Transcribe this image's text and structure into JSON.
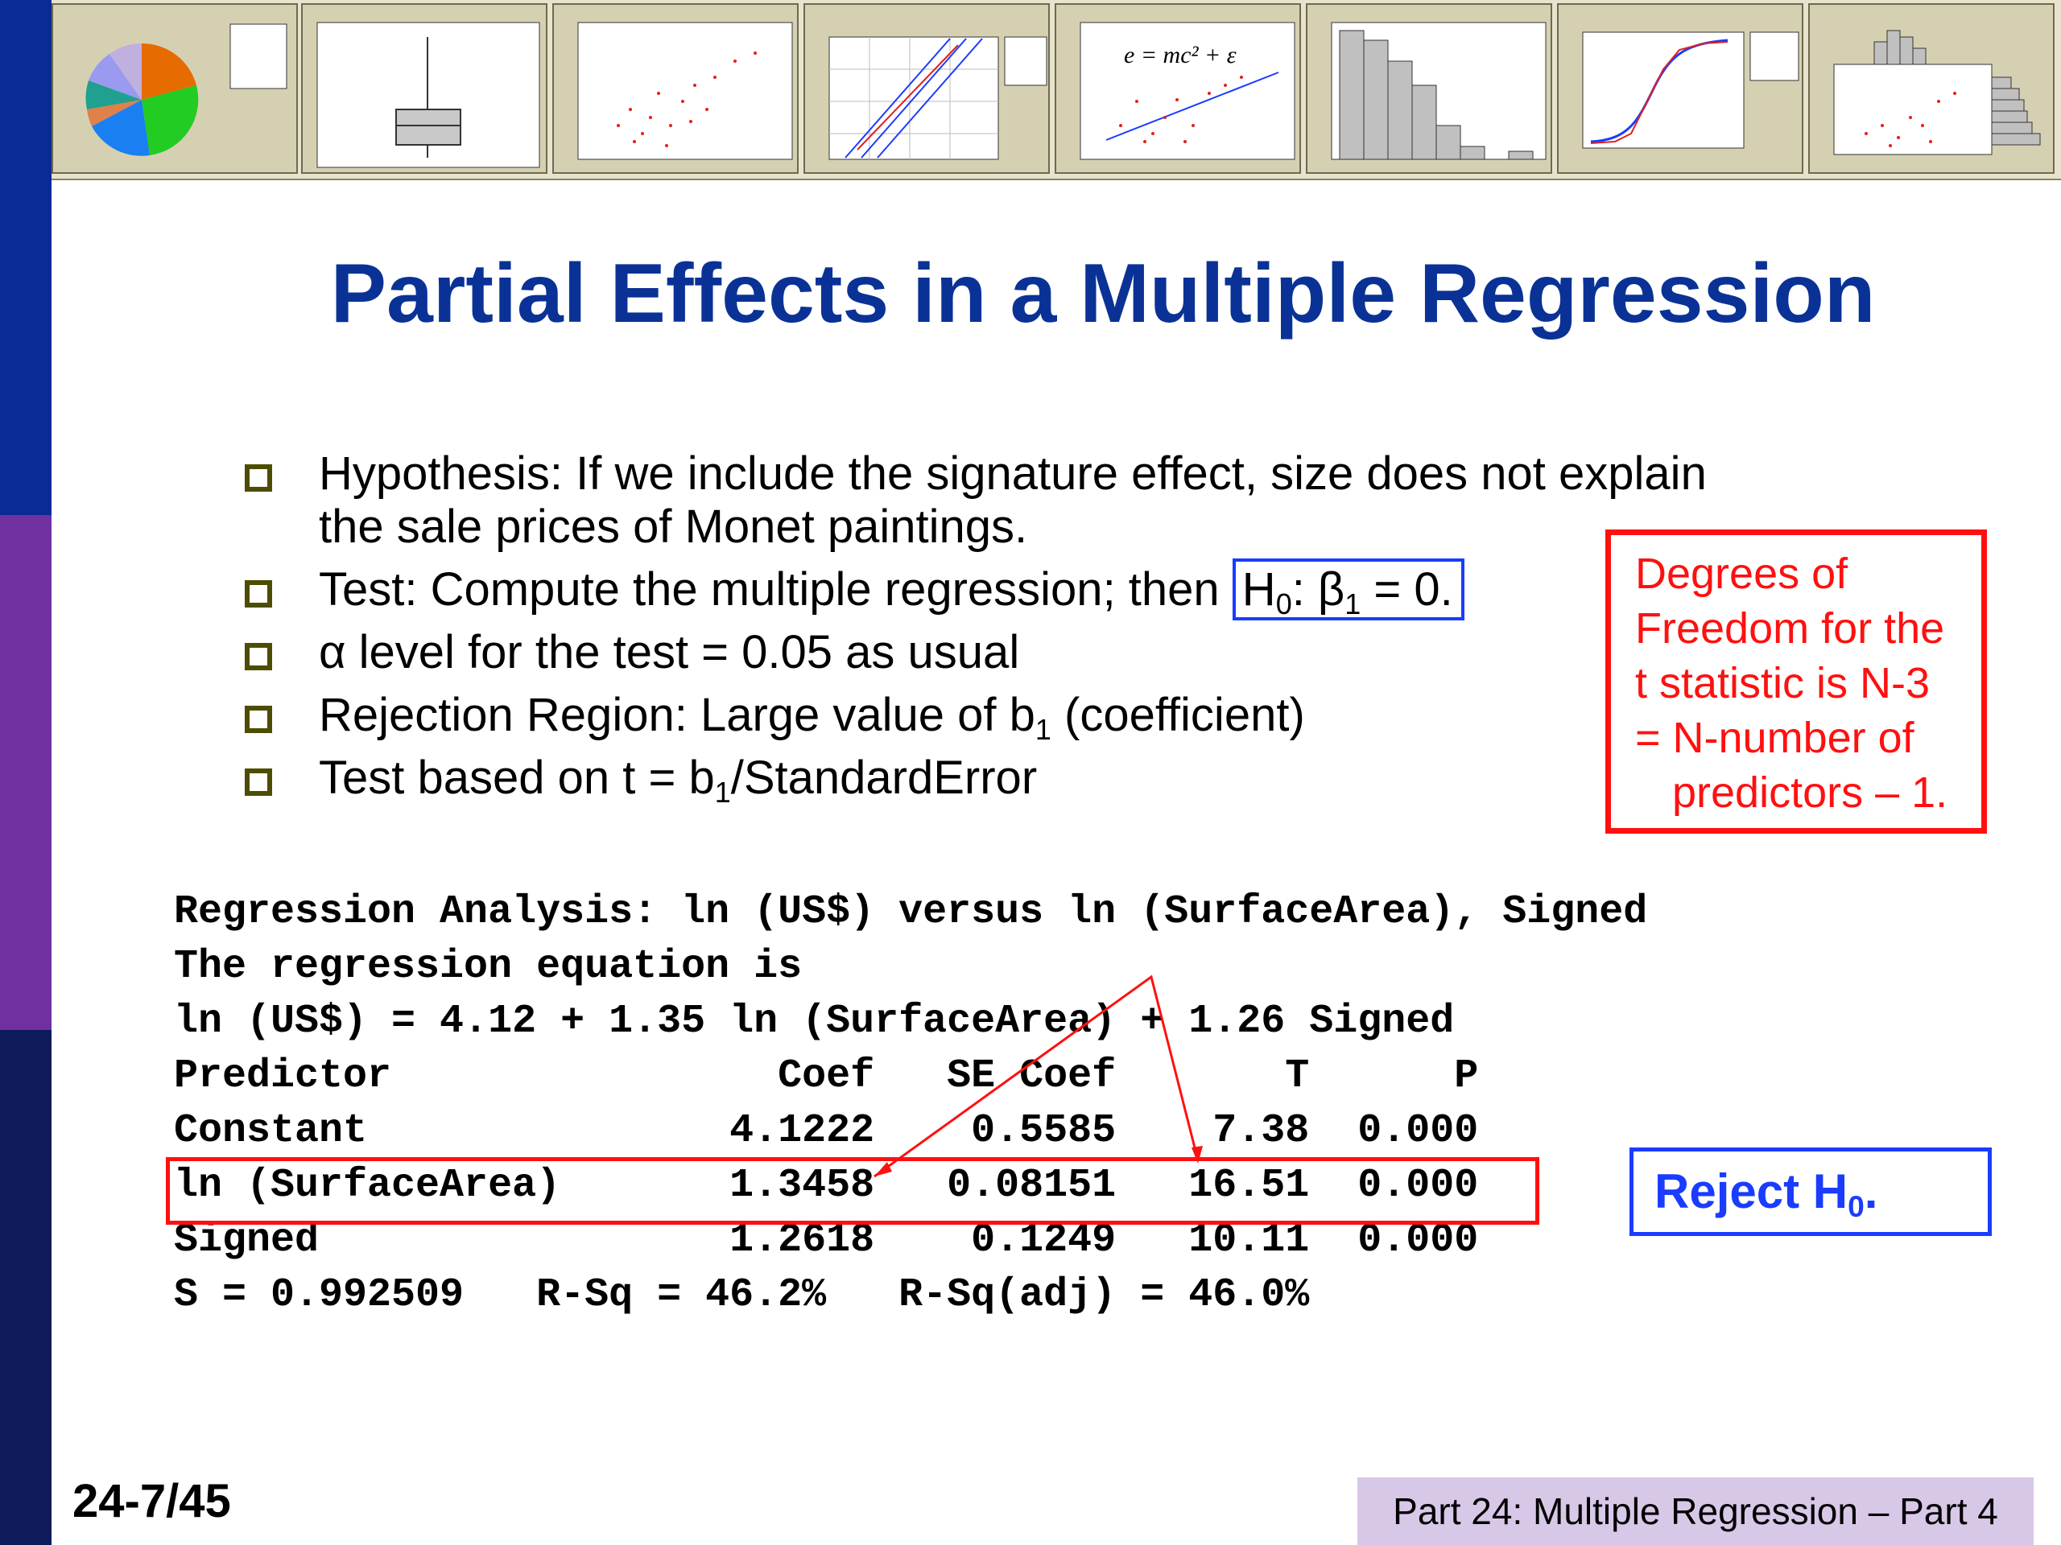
{
  "slide": {
    "title": "Partial Effects in a Multiple Regression",
    "bullets": [
      {
        "parts": [
          "Hypothesis: If we include the signature effect, size does not explain the sale prices of Monet paintings."
        ]
      },
      {
        "prefix": "Test: Compute the multiple regression; then ",
        "h0_main": "H",
        "h0_sub1": "0",
        "h0_mid": ": β",
        "h0_sub2": "1",
        "h0_end": " = 0."
      },
      {
        "parts": [
          "α level for the test = 0.05 as usual"
        ]
      },
      {
        "main": "Rejection Region:  Large value of b",
        "sub": "1",
        "end": " (coefficient)"
      },
      {
        "main": "Test based on t = b",
        "sub": "1",
        "end": "/StandardError"
      }
    ],
    "df_note": [
      "Degrees of",
      "Freedom for the",
      "t statistic is N-3",
      "= N-number of",
      "predictors – 1."
    ],
    "reject": {
      "main": "Reject H",
      "sub": "0",
      "end": "."
    },
    "page_number": "24-7/45",
    "footer": "Part 24: Multiple Regression – Part 4"
  },
  "regression_output": [
    "Regression Analysis: ln (US$) versus ln (SurfaceArea), Signed",
    "The regression equation is",
    "ln (US$) = 4.12 + 1.35 ln (SurfaceArea) + 1.26 Signed",
    "Predictor                Coef   SE Coef       T      P",
    "Constant               4.1222    0.5585    7.38  0.000",
    "ln (SurfaceArea)       1.3458   0.08151   16.51  0.000",
    "Signed                 1.2618    0.1249   10.11  0.000",
    "S = 0.992509   R-Sq = 46.2%   R-Sq(adj) = 46.0%"
  ],
  "thumb_equation": "e = mc² + ε",
  "colors": {
    "title": "#0a3296",
    "red": "#ff1010",
    "blue": "#1a3cff",
    "bullet": "#4d4d00"
  }
}
